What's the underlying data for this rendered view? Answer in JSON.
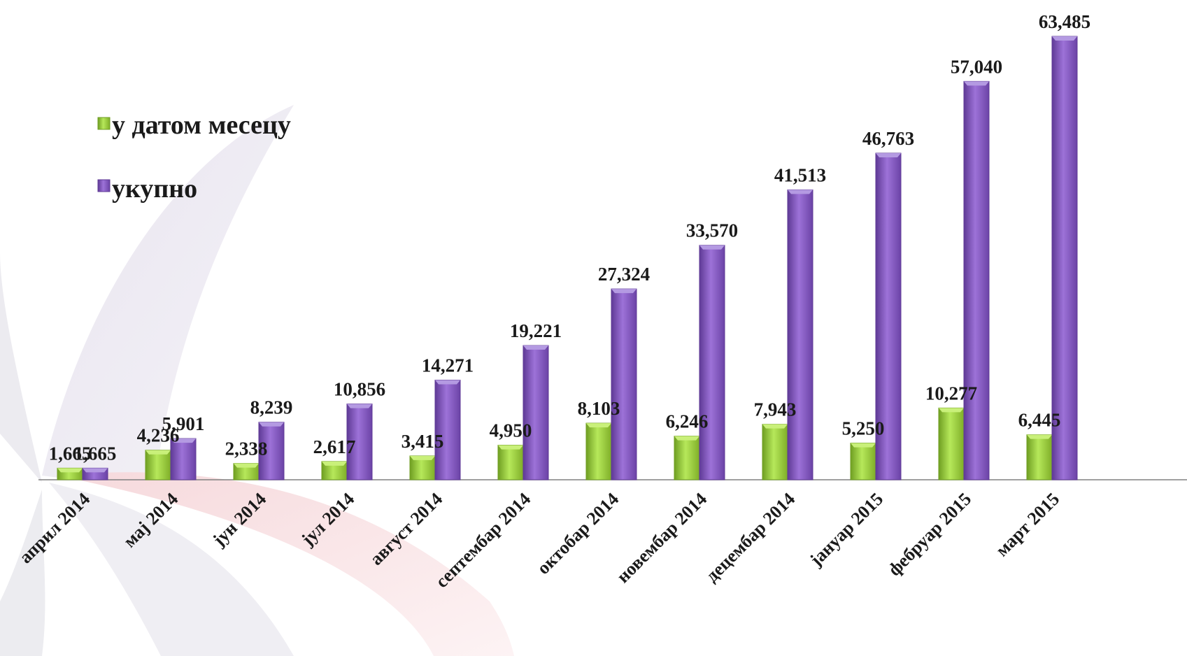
{
  "colors": {
    "monthly": "#9bd63a",
    "monthly_dark": "#6f9e22",
    "total": "#8a5cc8",
    "total_dark": "#5f3a96",
    "axis": "#808080"
  },
  "chart_data": {
    "type": "bar",
    "categories": [
      "април 2014",
      "мај 2014",
      "јун 2014",
      "јул 2014",
      "август 2014",
      "септембар 2014",
      "октобар 2014",
      "новембар 2014",
      "децембар 2014",
      "јануар 2015",
      "фебруар 2015",
      "март 2015"
    ],
    "series": [
      {
        "name": "у датом месецу",
        "values": [
          1665,
          4236,
          2338,
          2617,
          3415,
          4950,
          8103,
          6246,
          7943,
          5250,
          10277,
          6445
        ],
        "labels": [
          "1,665",
          "4,236",
          "2,338",
          "2,617",
          "3,415",
          "4,950",
          "8,103",
          "6,246",
          "7,943",
          "5,250",
          "10,277",
          "6,445"
        ]
      },
      {
        "name": "укупно",
        "values": [
          1665,
          5901,
          8239,
          10856,
          14271,
          19221,
          27324,
          33570,
          41513,
          46763,
          57040,
          63485
        ],
        "labels": [
          "1,665",
          "5,901",
          "8,239",
          "10,856",
          "14,271",
          "19,221",
          "27,324",
          "33,570",
          "41,513",
          "46,763",
          "57,040",
          "63,485"
        ]
      }
    ],
    "ylim": [
      0,
      63485
    ],
    "legend_position": "top-left",
    "grid": false
  }
}
